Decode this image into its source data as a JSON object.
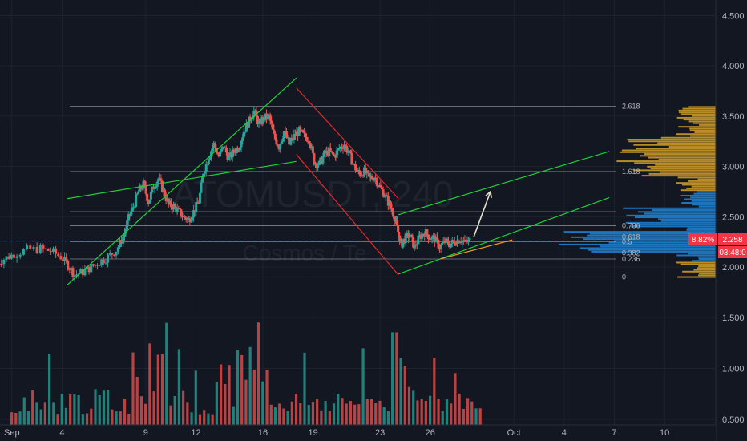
{
  "chart_data": {
    "type": "candlestick",
    "watermark": {
      "symbol": "ATOMUSDT, 240",
      "name": "Cosmos / Te"
    },
    "price_axis": {
      "ticks": [
        4.5,
        4.0,
        3.5,
        3.0,
        2.5,
        2.0
      ],
      "labels": [
        "4.500",
        "4.000",
        "3.500",
        "3.000",
        "2.500",
        "2.000"
      ]
    },
    "volume_axis": {
      "ticks": [
        1.5,
        1.0,
        0.5
      ],
      "labels": [
        "1.500",
        "1.000",
        "0.500"
      ]
    },
    "x_ticks": [
      {
        "label": "Sep",
        "day": 1
      },
      {
        "label": "4",
        "day": 4
      },
      {
        "label": "9",
        "day": 9
      },
      {
        "label": "12",
        "day": 12
      },
      {
        "label": "16",
        "day": 16
      },
      {
        "label": "19",
        "day": 19
      },
      {
        "label": "23",
        "day": 23
      },
      {
        "label": "26",
        "day": 26
      },
      {
        "label": "Oct",
        "day": 31
      },
      {
        "label": "4",
        "day": 34
      },
      {
        "label": "7",
        "day": 37
      },
      {
        "label": "10",
        "day": 40
      }
    ],
    "last_price": {
      "percent": "8.82%",
      "price": "2.258",
      "countdown": "03:48:0",
      "value": 2.258
    },
    "fib_levels": [
      {
        "label": "2.618",
        "price": 3.6
      },
      {
        "label": "1.618",
        "price": 2.95
      },
      {
        "label": "",
        "price": 2.55
      },
      {
        "label": "0.786",
        "price": 2.41
      },
      {
        "label": "0.618",
        "price": 2.3
      },
      {
        "label": "0.5",
        "price": 2.25
      },
      {
        "label": "0.382",
        "price": 2.14
      },
      {
        "label": "0.236",
        "price": 2.08
      },
      {
        "label": "0",
        "price": 1.9
      }
    ],
    "price_path": [
      [
        0,
        2.03
      ],
      [
        0.6,
        2.08
      ],
      [
        1.2,
        2.13
      ],
      [
        2,
        2.17
      ],
      [
        2.8,
        2.18
      ],
      [
        3.4,
        2.16
      ],
      [
        4,
        2.1
      ],
      [
        4.4,
        2.02
      ],
      [
        4.8,
        1.92
      ],
      [
        5.3,
        1.95
      ],
      [
        5.8,
        2.0
      ],
      [
        6.3,
        2.05
      ],
      [
        6.8,
        2.1
      ],
      [
        7.3,
        2.17
      ],
      [
        7.7,
        2.3
      ],
      [
        8.0,
        2.48
      ],
      [
        8.3,
        2.6
      ],
      [
        8.6,
        2.75
      ],
      [
        8.9,
        2.82
      ],
      [
        9.2,
        2.65
      ],
      [
        9.5,
        2.8
      ],
      [
        9.8,
        2.88
      ],
      [
        10.1,
        2.75
      ],
      [
        10.4,
        2.62
      ],
      [
        10.7,
        2.6
      ],
      [
        11.0,
        2.55
      ],
      [
        11.3,
        2.5
      ],
      [
        11.6,
        2.47
      ],
      [
        11.9,
        2.55
      ],
      [
        12.2,
        2.65
      ],
      [
        12.5,
        2.95
      ],
      [
        12.8,
        3.1
      ],
      [
        13.1,
        3.22
      ],
      [
        13.4,
        3.1
      ],
      [
        13.7,
        3.2
      ],
      [
        14.0,
        3.08
      ],
      [
        14.3,
        3.15
      ],
      [
        14.6,
        3.2
      ],
      [
        14.9,
        3.35
      ],
      [
        15.2,
        3.45
      ],
      [
        15.5,
        3.55
      ],
      [
        15.8,
        3.42
      ],
      [
        16.1,
        3.48
      ],
      [
        16.4,
        3.5
      ],
      [
        16.7,
        3.3
      ],
      [
        17.0,
        3.2
      ],
      [
        17.3,
        3.35
      ],
      [
        17.6,
        3.22
      ],
      [
        17.9,
        3.3
      ],
      [
        18.2,
        3.35
      ],
      [
        18.5,
        3.3
      ],
      [
        18.8,
        3.28
      ],
      [
        19.1,
        3.05
      ],
      [
        19.4,
        3.02
      ],
      [
        19.7,
        3.12
      ],
      [
        20.0,
        3.15
      ],
      [
        20.3,
        3.1
      ],
      [
        20.6,
        3.18
      ],
      [
        20.9,
        3.22
      ],
      [
        21.2,
        3.12
      ],
      [
        21.5,
        3.0
      ],
      [
        21.8,
        2.92
      ],
      [
        22.1,
        2.95
      ],
      [
        22.4,
        2.88
      ],
      [
        22.7,
        2.9
      ],
      [
        23.0,
        2.8
      ],
      [
        23.3,
        2.72
      ],
      [
        23.6,
        2.62
      ],
      [
        23.9,
        2.5
      ],
      [
        24.1,
        2.35
      ],
      [
        24.3,
        2.22
      ],
      [
        24.5,
        2.28
      ],
      [
        24.8,
        2.32
      ],
      [
        25.1,
        2.2
      ],
      [
        25.4,
        2.3
      ],
      [
        25.7,
        2.35
      ],
      [
        26.0,
        2.3
      ],
      [
        26.3,
        2.28
      ],
      [
        26.6,
        2.2
      ],
      [
        26.9,
        2.25
      ],
      [
        27.2,
        2.23
      ],
      [
        27.5,
        2.25
      ],
      [
        27.8,
        2.28
      ],
      [
        28.1,
        2.24
      ],
      [
        28.4,
        2.26
      ]
    ],
    "channels": [
      {
        "color": "#1fcf3a",
        "points": [
          [
            4.3,
            1.82
          ],
          [
            18.0,
            3.88
          ]
        ]
      },
      {
        "color": "#1fcf3a",
        "points": [
          [
            4.3,
            2.68
          ],
          [
            18.0,
            3.05
          ]
        ]
      },
      {
        "color": "#e0292b",
        "points": [
          [
            18.0,
            3.78
          ],
          [
            24.1,
            2.68
          ]
        ]
      },
      {
        "color": "#e0292b",
        "points": [
          [
            18.0,
            3.12
          ],
          [
            24.1,
            1.92
          ]
        ]
      },
      {
        "color": "#1fcf3a",
        "points": [
          [
            24.1,
            1.93
          ],
          [
            36.7,
            2.69
          ]
        ]
      },
      {
        "color": "#1fcf3a",
        "points": [
          [
            24.1,
            2.52
          ],
          [
            36.7,
            3.15
          ]
        ]
      },
      {
        "color": "#f0a020",
        "points": [
          [
            26.6,
            2.08
          ],
          [
            30.9,
            2.27
          ]
        ]
      }
    ],
    "arrow": {
      "color": "#e8e0d0",
      "from": [
        28.6,
        2.3
      ],
      "to": [
        29.6,
        2.75
      ]
    },
    "volume_seed": 7
  }
}
